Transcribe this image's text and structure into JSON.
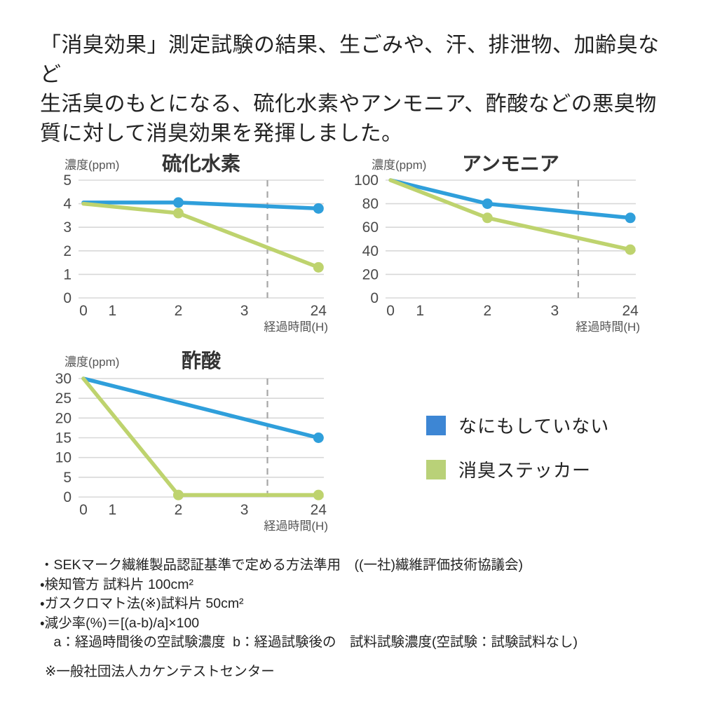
{
  "colors": {
    "blue": "#2f9fdb",
    "green": "#bed36e",
    "legend_blue": "#3d86d4",
    "legend_green": "#b9d178",
    "grid": "#d8d8d8",
    "dashed": "#a6a6a6"
  },
  "intro": {
    "text": "「消臭効果」測定試験の結果、生ごみや、汗、排泄物、加齢臭など\n生活臭のもとになる、硫化水素やアンモニア、酢酸などの悪臭物\n質に対して消臭効果を発揮しました。"
  },
  "legend": {
    "items": [
      {
        "label": "なにもしていない",
        "color_key": "legend_blue"
      },
      {
        "label": "消臭ステッカー",
        "color_key": "legend_green"
      }
    ]
  },
  "chart_data": [
    {
      "type": "line",
      "title": "硫化水素",
      "ylabel": "濃度(ppm)",
      "xlabel": "経過時間(H)",
      "x_tick_labels": [
        "0",
        "1",
        "2",
        "3",
        "24"
      ],
      "x_hours": [
        0,
        1,
        2,
        3,
        24
      ],
      "y_ticks": [
        0,
        1,
        2,
        3,
        4,
        5
      ],
      "ylim": [
        0,
        5
      ],
      "grid": true,
      "has_dashed_reference_line": true,
      "series": [
        {
          "name": "なにもしていない",
          "color": "blue",
          "points": [
            {
              "x": 0,
              "y": 4.05,
              "dot": false
            },
            {
              "x": 2,
              "y": 4.05,
              "dot": true
            },
            {
              "x": 24,
              "y": 3.8,
              "dot": true
            }
          ]
        },
        {
          "name": "消臭ステッカー",
          "color": "green",
          "points": [
            {
              "x": 0,
              "y": 4.0,
              "dot": false
            },
            {
              "x": 2,
              "y": 3.6,
              "dot": true
            },
            {
              "x": 24,
              "y": 1.3,
              "dot": true
            }
          ]
        }
      ]
    },
    {
      "type": "line",
      "title": "アンモニア",
      "ylabel": "濃度(ppm)",
      "xlabel": "経過時間(H)",
      "x_tick_labels": [
        "0",
        "1",
        "2",
        "3",
        "24"
      ],
      "x_hours": [
        0,
        1,
        2,
        3,
        24
      ],
      "y_ticks": [
        0,
        20,
        40,
        60,
        80,
        100
      ],
      "ylim": [
        0,
        100
      ],
      "grid": true,
      "has_dashed_reference_line": true,
      "series": [
        {
          "name": "なにもしていない",
          "color": "blue",
          "points": [
            {
              "x": 0,
              "y": 100,
              "dot": false
            },
            {
              "x": 2,
              "y": 80,
              "dot": true
            },
            {
              "x": 24,
              "y": 68,
              "dot": true
            }
          ]
        },
        {
          "name": "消臭ステッカー",
          "color": "green",
          "points": [
            {
              "x": 0,
              "y": 100,
              "dot": false
            },
            {
              "x": 2,
              "y": 68,
              "dot": true
            },
            {
              "x": 24,
              "y": 41,
              "dot": true
            }
          ]
        }
      ]
    },
    {
      "type": "line",
      "title": "酢酸",
      "ylabel": "濃度(ppm)",
      "xlabel": "経過時間(H)",
      "x_tick_labels": [
        "0",
        "1",
        "2",
        "3",
        "24"
      ],
      "x_hours": [
        0,
        1,
        2,
        3,
        24
      ],
      "y_ticks": [
        0,
        5,
        10,
        15,
        20,
        25,
        30
      ],
      "ylim": [
        0,
        30
      ],
      "grid": true,
      "has_dashed_reference_line": true,
      "series": [
        {
          "name": "なにもしていない",
          "color": "blue",
          "points": [
            {
              "x": 0,
              "y": 30,
              "dot": false
            },
            {
              "x": 24,
              "y": 15,
              "dot": true
            }
          ]
        },
        {
          "name": "消臭ステッカー",
          "color": "green",
          "points": [
            {
              "x": 0,
              "y": 30,
              "dot": false
            },
            {
              "x": 2,
              "y": 0.5,
              "dot": true
            },
            {
              "x": 24,
              "y": 0.5,
              "dot": true
            }
          ]
        }
      ]
    }
  ],
  "footnotes": {
    "lines": [
      "・SEKマーク繊維製品認証基準で定める方法準用　((一社)繊維評価技術協議会)",
      "・検知管方 試料片 100cm²",
      "・ガスクロマト法(※)試料片 50cm²",
      "・減少率(%)＝[(a-b)/a]×100",
      "　a：経過時間後の空試験濃度  b：経過試験後の　試料試験濃度(空試験：試験試料なし)"
    ],
    "note": "※一般社団法人カケンテストセンター"
  }
}
